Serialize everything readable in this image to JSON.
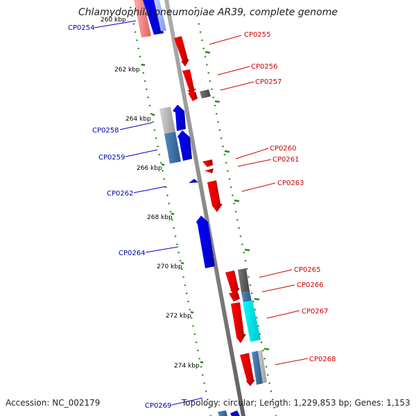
{
  "title": "Chlamydophila pneumoniae AR39, complete genome",
  "footer": {
    "accession": "Accession: NC_002179",
    "summary": "Topology: circular; Length: 1,229,853 bp; Genes: 1,153"
  },
  "colors": {
    "backbone": "#8c8c8c",
    "forward_gene": "#ff0000",
    "reverse_gene": "#0000ff",
    "label_forward": "#cc0000",
    "label_reverse": "#0000aa",
    "tick": "#2a8a1a",
    "gray_feature": "#666666",
    "cyan_feature": "#00ffff",
    "steel_feature": "#4682b4",
    "light_gray_feature": "#bdbdbd"
  },
  "ruler": {
    "unit": "kbp",
    "ticks": [
      {
        "kbp": 260,
        "label": "260 kbp"
      },
      {
        "kbp": 262,
        "label": "262 kbp"
      },
      {
        "kbp": 264,
        "label": "264 kbp"
      },
      {
        "kbp": 266,
        "label": "266 kbp"
      },
      {
        "kbp": 268,
        "label": "268 kbp"
      },
      {
        "kbp": 270,
        "label": "270 kbp"
      },
      {
        "kbp": 272,
        "label": "272 kbp"
      },
      {
        "kbp": 274,
        "label": "274 kbp"
      }
    ]
  },
  "genes": [
    {
      "id": "CP0254",
      "label": "CP0254",
      "strand": "reverse"
    },
    {
      "id": "CP0255",
      "label": "CP0255",
      "strand": "forward"
    },
    {
      "id": "CP0256",
      "label": "CP0256",
      "strand": "forward"
    },
    {
      "id": "CP0257",
      "label": "CP0257",
      "strand": "forward"
    },
    {
      "id": "CP0258",
      "label": "CP0258",
      "strand": "reverse"
    },
    {
      "id": "CP0259",
      "label": "CP0259",
      "strand": "reverse"
    },
    {
      "id": "CP0260",
      "label": "CP0260",
      "strand": "forward"
    },
    {
      "id": "CP0261",
      "label": "CP0261",
      "strand": "forward"
    },
    {
      "id": "CP0262",
      "label": "CP0262",
      "strand": "reverse"
    },
    {
      "id": "CP0263",
      "label": "CP0263",
      "strand": "forward"
    },
    {
      "id": "CP0264",
      "label": "CP0264",
      "strand": "reverse"
    },
    {
      "id": "CP0265",
      "label": "CP0265",
      "strand": "forward"
    },
    {
      "id": "CP0266",
      "label": "CP0266",
      "strand": "forward"
    },
    {
      "id": "CP0267",
      "label": "CP0267",
      "strand": "forward"
    },
    {
      "id": "CP0268",
      "label": "CP0268",
      "strand": "forward"
    },
    {
      "id": "CP0269",
      "label": "CP0269",
      "strand": "reverse"
    }
  ]
}
